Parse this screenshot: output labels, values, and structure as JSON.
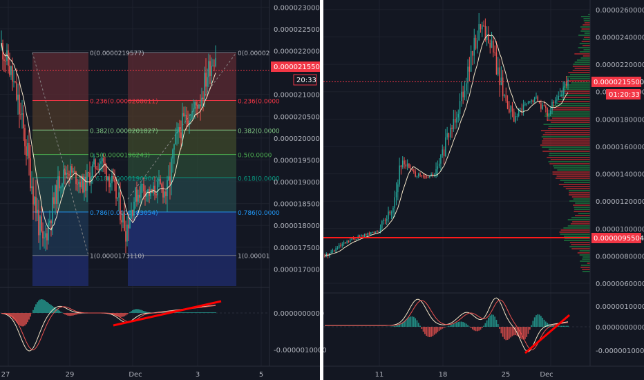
{
  "left": {
    "price_axis_labels": [
      "0.0000230000",
      "0.0000225000",
      "0.0000220000",
      "0.0000215500",
      "0.0000210000",
      "0.0000205000",
      "0.0000200000",
      "0.0000195000",
      "0.0000190000",
      "0.0000185000",
      "0.0000180000",
      "0.0000175000",
      "0.0000170000"
    ],
    "current_price_label": "0.0000215500",
    "countdown_label": "20:33",
    "date_labels": [
      "27",
      "29",
      "Dec",
      "3",
      "5"
    ],
    "osc_axis_labels": [
      "0.0000000000",
      "-0.0000010000"
    ],
    "fib_levels": [
      {
        "label": "0(0.0000219577)",
        "price": 2.19577e-05,
        "color": "#787b86"
      },
      {
        "label": "0.236(0.0000208611)",
        "price": 2.08611e-05,
        "color": "#f23645"
      },
      {
        "label": "0.382(0.0000201827)",
        "price": 2.01827e-05,
        "color": "#81c784"
      },
      {
        "label": "0.5(0.0000196243)",
        "price": 1.96243e-05,
        "color": "#4caf50"
      },
      {
        "label": "0.618(0.0000190906)",
        "price": 1.90906e-05,
        "color": "#089981"
      },
      {
        "label": "0.786(0.0000183054)",
        "price": 1.83054e-05,
        "color": "#2196f3"
      },
      {
        "label": "1(0.0000173110)",
        "price": 1.7311e-05,
        "color": "#787b86"
      }
    ],
    "fib_right_labels": [
      "0(0.00002",
      "0.236(0.0000",
      "0.382(0.0000",
      "0.5(0.0000",
      "0.618(0.0000",
      "0.786(0.0000",
      "1(0.00001"
    ]
  },
  "right": {
    "price_axis_labels": [
      "0.0000260000",
      "0.0000240000",
      "0.0000220000",
      "0.0000200000",
      "0.0000180000",
      "0.0000160000",
      "0.0000140000",
      "0.0000120000",
      "0.0000100000",
      "0.0000080000",
      "0.0000060000"
    ],
    "current_price_label": "0.0000215500",
    "countdown_label": "01:20:33",
    "support_label": "0.0000095504",
    "date_labels": [
      "11",
      "18",
      "25",
      "Dec"
    ],
    "osc_axis_labels": [
      "0.0000010000",
      "0.0000000000",
      "-0.0000010000"
    ]
  },
  "colors": {
    "background": "#131722",
    "up": "#26a69a",
    "down": "#ef5350",
    "price_tag": "#f23645",
    "ma": "#f5e6c8",
    "divergence": "#ff0000"
  },
  "chart_data": [
    {
      "type": "candlestick",
      "timeframe": "intraday",
      "x_ticks": [
        "27",
        "29",
        "Dec",
        "3",
        "5"
      ],
      "ylim": [
        1.68e-05,
        2.31e-05
      ],
      "current_price": 2.155e-05,
      "close_path": [
        2.21e-05,
        2.16e-05,
        2.08e-05,
        1.98e-05,
        1.86e-05,
        1.75e-05,
        1.83e-05,
        1.9e-05,
        1.93e-05,
        1.91e-05,
        1.89e-05,
        1.93e-05,
        1.95e-05,
        1.91e-05,
        1.86e-05,
        1.79e-05,
        1.86e-05,
        1.89e-05,
        1.87e-05,
        1.89e-05,
        1.87e-05,
        1.99e-05,
        2.04e-05,
        2.06e-05,
        2.09e-05,
        2.16e-05,
        2.2e-05
      ],
      "fib_retracement": {
        "0": 2.19577e-05,
        "0.236": 2.08611e-05,
        "0.382": 2.01827e-05,
        "0.5": 1.96243e-05,
        "0.618": 1.90906e-05,
        "0.786": 1.83054e-05,
        "1": 1.7311e-05
      }
    },
    {
      "type": "candlestick",
      "timeframe": "daily",
      "x_ticks": [
        "11",
        "18",
        "25",
        "Dec"
      ],
      "ylim": [
        5.9e-06,
        2.65e-05
      ],
      "current_price": 2.155e-05,
      "support_level": 9.5504e-06,
      "close_path": [
        8e-06,
        8.5e-06,
        9e-06,
        9.4e-06,
        9.6e-06,
        1e-05,
        1.15e-05,
        1.5e-05,
        1.4e-05,
        1.37e-05,
        1.4e-05,
        1.65e-05,
        1.9e-05,
        2.2e-05,
        2.5e-05,
        2.33e-05,
        2e-05,
        1.8e-05,
        1.9e-05,
        1.95e-05,
        1.85e-05,
        1.95e-05,
        2.15e-05
      ]
    }
  ]
}
